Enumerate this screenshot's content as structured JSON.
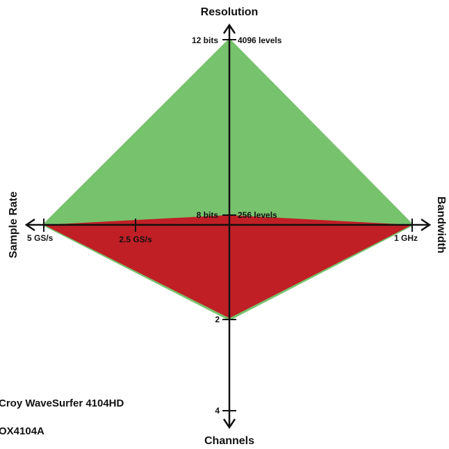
{
  "axes": {
    "resolution": {
      "title": "Resolution",
      "ticks": {
        "top_left": "12 bits",
        "top_right": "4096 levels",
        "mid_left": "8 bits",
        "mid_right": "256 levels"
      }
    },
    "sample_rate": {
      "title": "Sample Rate",
      "ticks": {
        "outer": "5 GS/s",
        "mid": "2.5 GS/s"
      }
    },
    "bandwidth": {
      "title": "Bandwidth",
      "ticks": {
        "outer": "1 GHz"
      }
    },
    "channels": {
      "title": "Channels",
      "ticks": {
        "mid": "2",
        "outer": "4"
      }
    }
  },
  "legend": {
    "items": [
      {
        "label": "Croy WaveSurfer 4104HD",
        "color": "#77c26d"
      },
      {
        "label": "OX4104A",
        "color": "#c01f26"
      }
    ]
  }
}
